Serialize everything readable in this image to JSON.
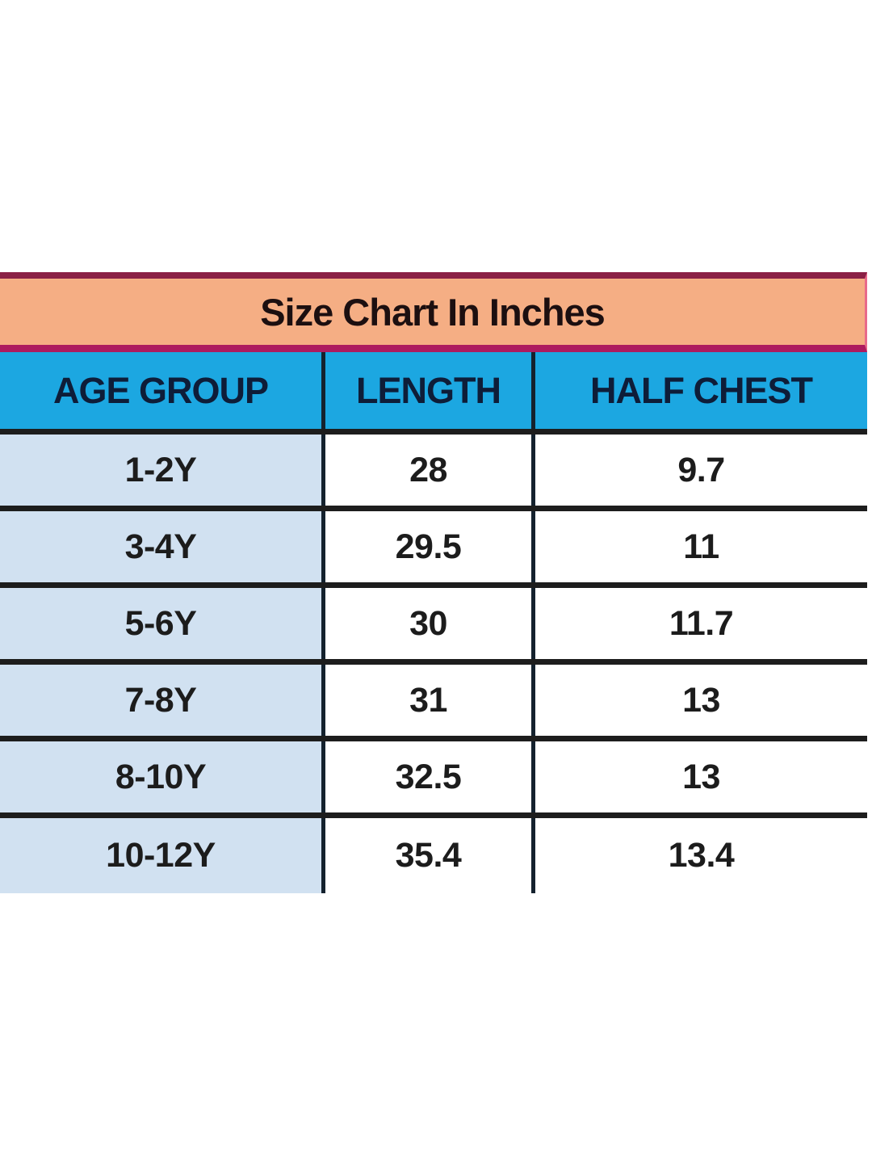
{
  "table": {
    "title": "Size Chart In Inches",
    "columns": [
      "AGE GROUP",
      "LENGTH",
      "HALF CHEST"
    ],
    "rows": [
      [
        "1-2Y",
        "28",
        "9.7"
      ],
      [
        "3-4Y",
        "29.5",
        "11"
      ],
      [
        "5-6Y",
        "30",
        "11.7"
      ],
      [
        "7-8Y",
        "31",
        "13"
      ],
      [
        "8-10Y",
        "32.5",
        "13"
      ],
      [
        "10-12Y",
        "35.4",
        "13.4"
      ]
    ],
    "units": "inches"
  },
  "colors": {
    "title_background": "#f5ae84",
    "title_border_top": "#8a2045",
    "title_border_bottom": "#ad1b5f",
    "header_background": "#1ca7e1",
    "header_text": "#0e1d38",
    "age_column_background": "#d1e1f1",
    "value_cell_background": "#ffffff",
    "gridline": "#1d1d1d",
    "page_background": "#ffffff"
  },
  "chart_data": {
    "type": "table",
    "title": "Size Chart In Inches",
    "columns": [
      "AGE GROUP",
      "LENGTH",
      "HALF CHEST"
    ],
    "rows": [
      [
        "1-2Y",
        "28",
        "9.7"
      ],
      [
        "3-4Y",
        "29.5",
        "11"
      ],
      [
        "5-6Y",
        "30",
        "11.7"
      ],
      [
        "7-8Y",
        "31",
        "13"
      ],
      [
        "8-10Y",
        "32.5",
        "13"
      ],
      [
        "10-12Y",
        "35.4",
        "13.4"
      ]
    ],
    "units": "inches",
    "layout": "title bar + 3-column table, first column shaded light blue, no bottom border (image cropped)"
  }
}
